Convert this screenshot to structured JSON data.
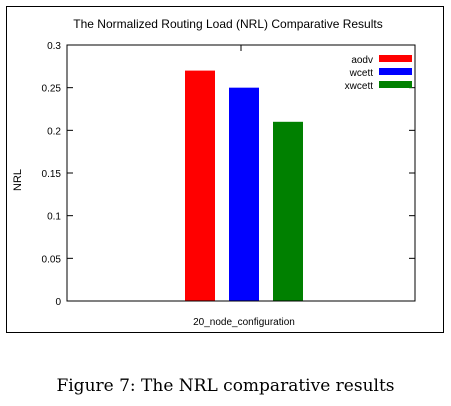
{
  "chart_data": {
    "type": "bar",
    "title": "The Normalized Routing Load (NRL) Comparative Results",
    "xlabel": "",
    "ylabel": "NRL",
    "categories": [
      "20_node_configuration"
    ],
    "series": [
      {
        "name": "aodv",
        "values": [
          0.27
        ],
        "color": "#ff0000"
      },
      {
        "name": "wcett",
        "values": [
          0.25
        ],
        "color": "#0000ff"
      },
      {
        "name": "xwcett",
        "values": [
          0.21
        ],
        "color": "#008000"
      }
    ],
    "ylim": [
      0,
      0.3
    ],
    "yticks": [
      "0",
      "0.05",
      "0.1",
      "0.15",
      "0.2",
      "0.25",
      "0.3"
    ],
    "ytick_values": [
      0,
      0.05,
      0.1,
      0.15,
      0.2,
      0.25,
      0.3
    ],
    "grid": false,
    "legend": "top-right"
  },
  "caption": "Figure 7: The NRL comparative results"
}
